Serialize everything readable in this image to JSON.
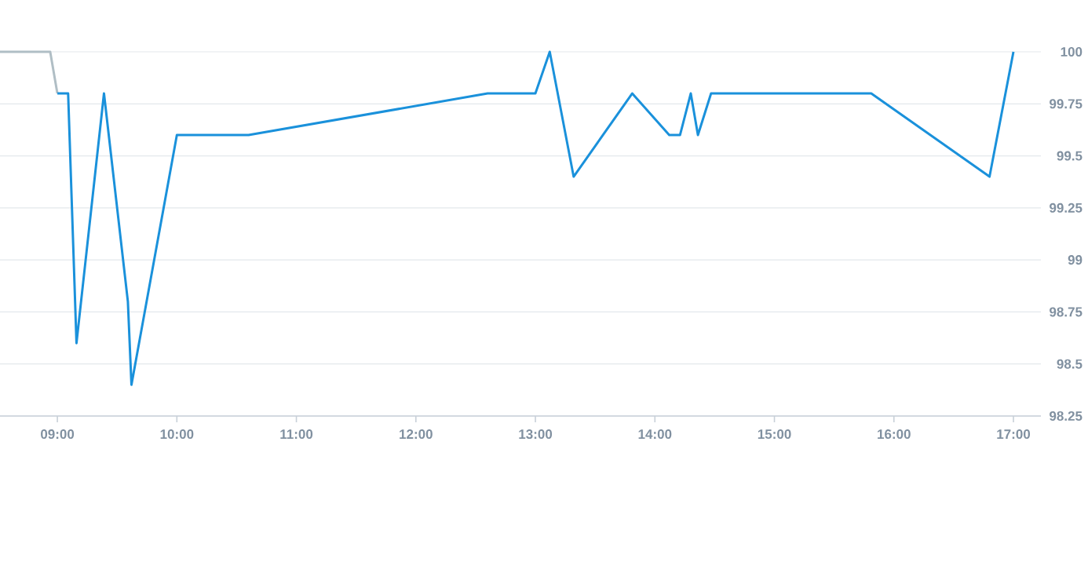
{
  "chart_data": {
    "type": "line",
    "xlim": [
      8.52,
      17.23
    ],
    "ylim": [
      98.25,
      100
    ],
    "xticks": [
      {
        "value": 9,
        "label": "09:00"
      },
      {
        "value": 10,
        "label": "10:00"
      },
      {
        "value": 11,
        "label": "11:00"
      },
      {
        "value": 12,
        "label": "12:00"
      },
      {
        "value": 13,
        "label": "13:00"
      },
      {
        "value": 14,
        "label": "14:00"
      },
      {
        "value": 15,
        "label": "15:00"
      },
      {
        "value": 16,
        "label": "16:00"
      },
      {
        "value": 17,
        "label": "17:00"
      }
    ],
    "yticks": [
      98.25,
      98.5,
      98.75,
      99,
      99.25,
      99.5,
      99.75,
      100
    ],
    "grid": "y",
    "marker": "none",
    "line_style": "solid",
    "series": [
      {
        "color": "#b0bec5",
        "x": [
          8.52,
          8.94,
          9.0
        ],
        "values": [
          100,
          100,
          99.8
        ]
      },
      {
        "color": "#1a91db",
        "x": [
          9.0,
          9.09,
          9.16,
          9.39,
          9.59,
          9.62,
          10.0,
          10.6,
          12.6,
          13.0,
          13.12,
          13.32,
          13.81,
          14.12,
          14.21,
          14.3,
          14.36,
          14.47,
          15.81,
          16.8,
          17.0
        ],
        "values": [
          99.8,
          99.8,
          98.6,
          99.8,
          98.8,
          98.4,
          99.6,
          99.6,
          99.8,
          99.8,
          100,
          99.4,
          99.8,
          99.6,
          99.6,
          99.8,
          99.6,
          99.8,
          99.8,
          99.4,
          100
        ]
      }
    ]
  }
}
